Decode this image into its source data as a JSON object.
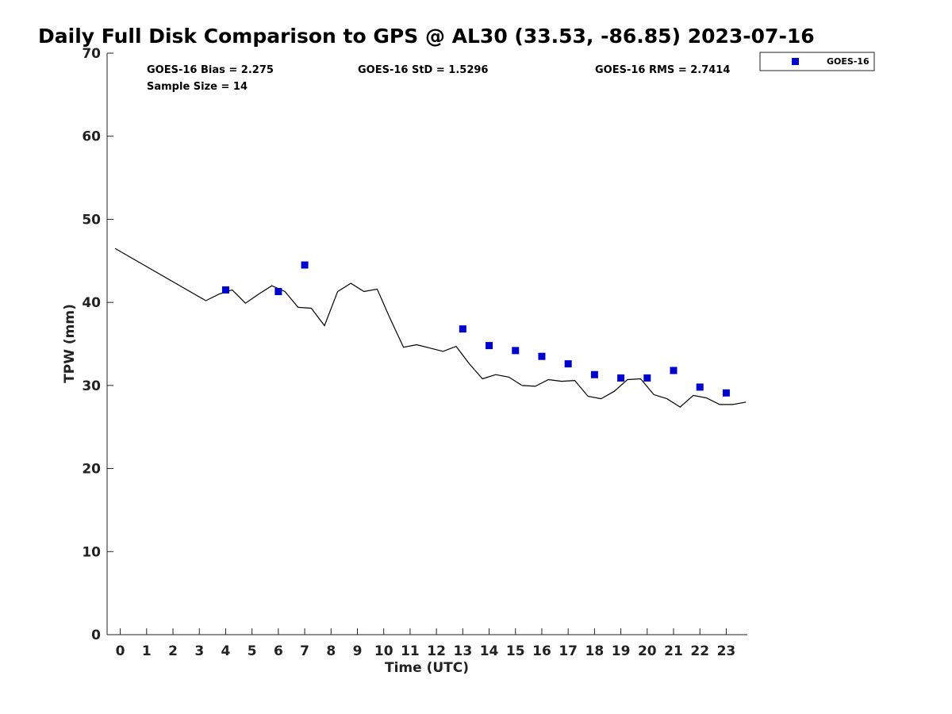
{
  "chart_data": {
    "type": "scatter",
    "title": "Daily Full Disk Comparison to GPS @ AL30 (33.53, -86.85) 2023-07-16",
    "xlabel": "Time (UTC)",
    "ylabel": "TPW (mm)",
    "xlim": [
      -0.5,
      23.8
    ],
    "ylim": [
      0,
      70
    ],
    "x_ticks": [
      0,
      1,
      2,
      3,
      4,
      5,
      6,
      7,
      8,
      9,
      10,
      11,
      12,
      13,
      14,
      15,
      16,
      17,
      18,
      19,
      20,
      21,
      22,
      23
    ],
    "y_ticks": [
      0,
      10,
      20,
      30,
      40,
      50,
      60,
      70
    ],
    "grid": false,
    "legend_position": "top-right",
    "stats": {
      "bias": "GOES-16 Bias = 2.275",
      "std": "GOES-16 StD = 1.5296",
      "rms": "GOES-16 RMS = 2.7414",
      "sample_size": "Sample Size = 14"
    },
    "series": [
      {
        "name": "",
        "kind": "line",
        "color": "#000000",
        "x": [
          -0.2,
          3.25,
          3.75,
          4.25,
          4.75,
          5.25,
          5.75,
          6.25,
          6.75,
          7.25,
          7.75,
          8.25,
          8.75,
          9.25,
          9.75,
          10.25,
          10.75,
          11.25,
          11.75,
          12.25,
          12.75,
          13.25,
          13.75,
          14.25,
          14.75,
          15.25,
          15.75,
          16.25,
          16.75,
          17.25,
          17.75,
          18.25,
          18.75,
          19.25,
          19.75,
          20.25,
          20.75,
          21.25,
          21.75,
          22.25,
          22.75,
          23.25,
          23.75
        ],
        "y": [
          46.5,
          40.2,
          41.0,
          41.5,
          39.9,
          41.0,
          42.0,
          41.3,
          39.4,
          39.3,
          37.2,
          41.3,
          42.3,
          41.3,
          41.6,
          38.0,
          34.6,
          34.9,
          34.5,
          34.1,
          34.7,
          32.6,
          30.8,
          31.3,
          31.0,
          30.0,
          29.9,
          30.7,
          30.5,
          30.6,
          28.7,
          28.4,
          29.3,
          30.7,
          30.8,
          28.9,
          28.4,
          27.4,
          28.8,
          28.5,
          27.7,
          27.7,
          28.0
        ]
      },
      {
        "name": "GOES-16",
        "kind": "scatter",
        "color": "#0000cc",
        "x": [
          4,
          6,
          7,
          13,
          14,
          15,
          16,
          17,
          18,
          19,
          20,
          21,
          22,
          23
        ],
        "y": [
          41.5,
          41.3,
          44.5,
          36.8,
          34.8,
          34.2,
          33.5,
          32.6,
          31.3,
          30.9,
          30.9,
          31.8,
          29.8,
          29.1
        ]
      }
    ]
  }
}
